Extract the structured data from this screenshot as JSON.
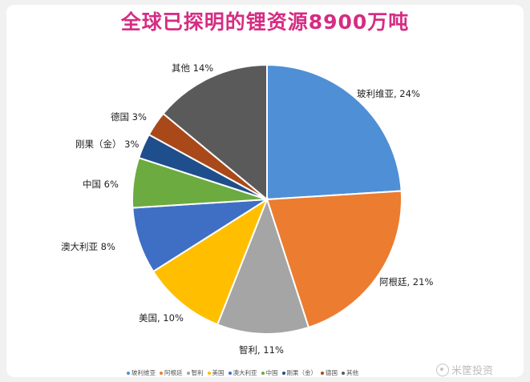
{
  "chart_data": {
    "type": "pie",
    "title": "全球已探明的锂资源8900万吨",
    "slices": [
      {
        "name": "玻利维亚",
        "label": "玻利维亚, 24%",
        "value": 24,
        "color": "#4f8fd6"
      },
      {
        "name": "阿根廷",
        "label": "阿根廷, 21%",
        "value": 21,
        "color": "#ec7c30"
      },
      {
        "name": "智利",
        "label": "智利, 11%",
        "value": 11,
        "color": "#a5a5a5"
      },
      {
        "name": "美国",
        "label": "美国, 10%",
        "value": 10,
        "color": "#ffbf00"
      },
      {
        "name": "澳大利亚",
        "label": "澳大利亚 8%",
        "value": 8,
        "color": "#3e6fc4"
      },
      {
        "name": "中国",
        "label": "中国 6%",
        "value": 6,
        "color": "#6bab3f"
      },
      {
        "name": "刚果（金）",
        "label": "刚果（金） 3%",
        "value": 3,
        "color": "#1f4e8c"
      },
      {
        "name": "德国",
        "label": "德国 3%",
        "value": 3,
        "color": "#a9491a"
      },
      {
        "name": "其他",
        "label": "其他 14%",
        "value": 14,
        "color": "#5a5a5a"
      }
    ],
    "legend_position": "bottom"
  },
  "watermark": "米筐投资"
}
